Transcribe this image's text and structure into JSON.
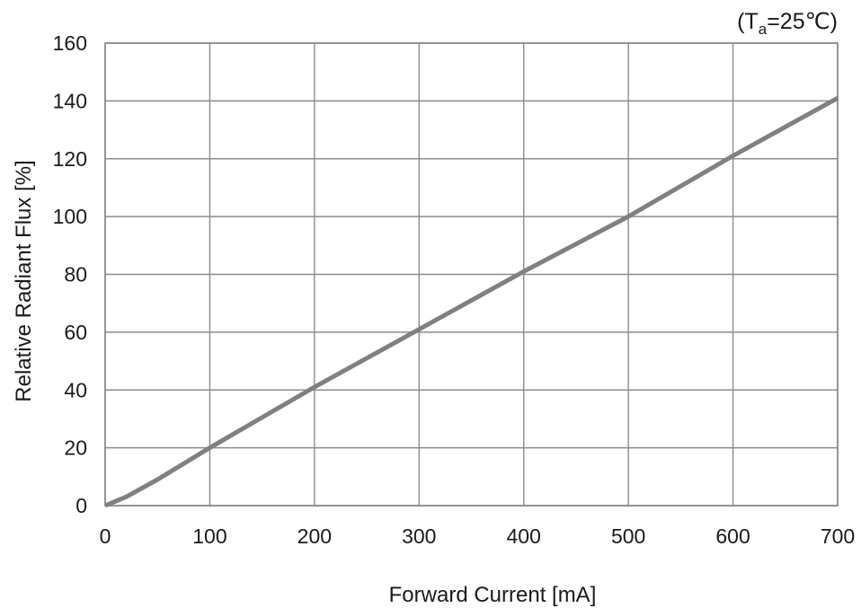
{
  "chart_data": {
    "type": "line",
    "title": "",
    "condition": {
      "prefix": "(T",
      "subscript": "a",
      "suffix": "=25℃)"
    },
    "xlabel": "Forward Current [mA]",
    "ylabel": "Relative Radiant Flux [%]",
    "xlim": [
      0,
      700
    ],
    "ylim": [
      0,
      160
    ],
    "x_ticks": [
      0,
      100,
      200,
      300,
      400,
      500,
      600,
      700
    ],
    "y_ticks": [
      0,
      20,
      40,
      60,
      80,
      100,
      120,
      140,
      160
    ],
    "grid": true,
    "legend": "none",
    "series": [
      {
        "color": "#808080",
        "x": [
          0,
          20,
          50,
          100,
          200,
          300,
          400,
          500,
          600,
          700
        ],
        "y": [
          0,
          3,
          9,
          20,
          41,
          61,
          81,
          100,
          121,
          141
        ]
      }
    ]
  }
}
